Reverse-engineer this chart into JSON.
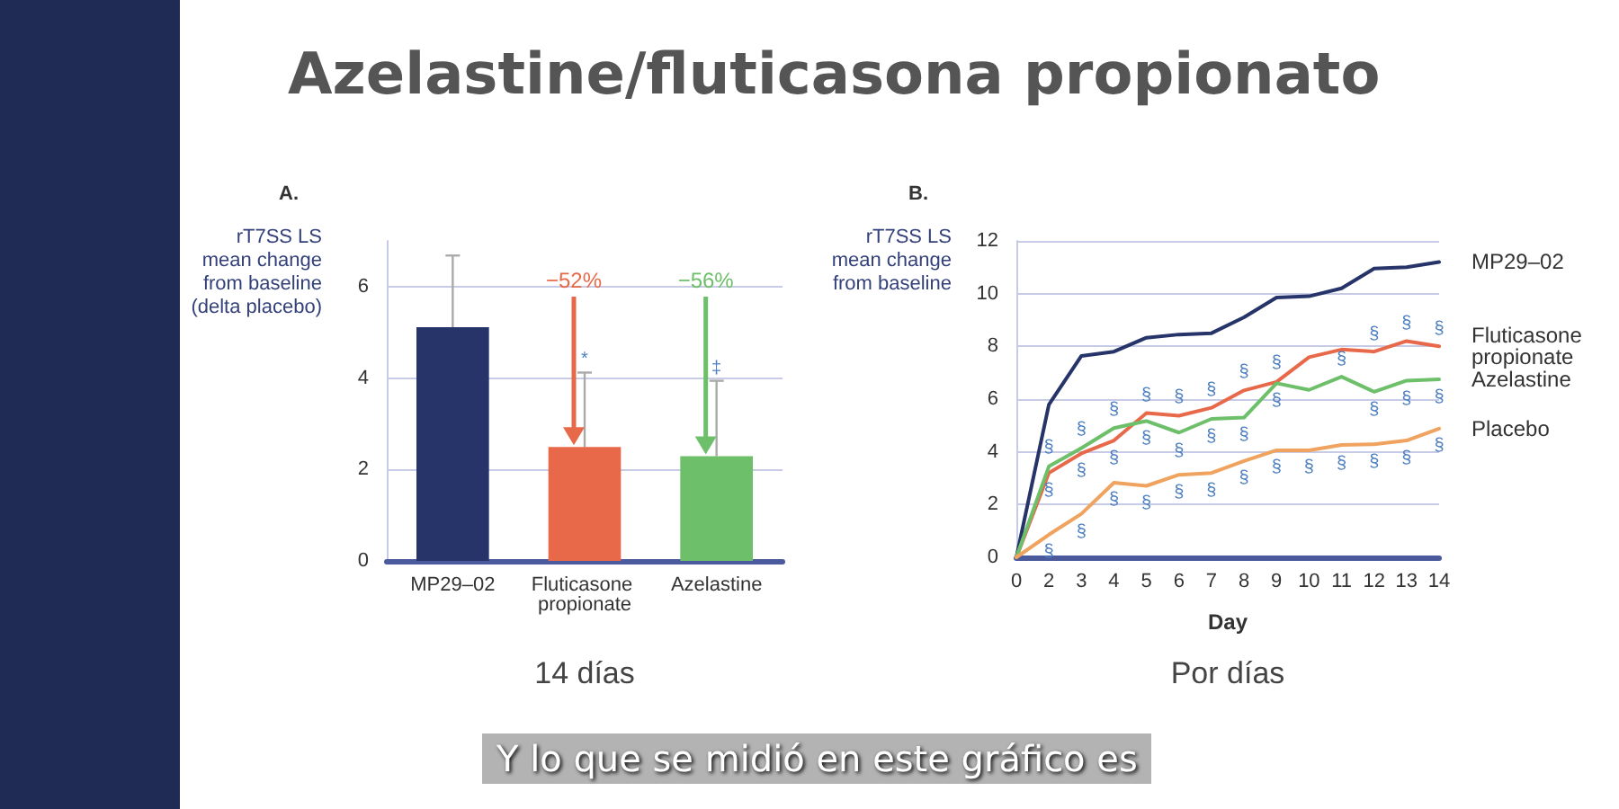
{
  "chart_data": [
    {
      "type": "bar",
      "title": "Azelastine/fluticasona propionato",
      "subtitle": "A.",
      "ylabel": "rT7SS LS mean change from baseline (delta placebo)",
      "xlabel": "14 días",
      "categories": [
        "MP29–02",
        "Fluticasone propionate",
        "Azelastine"
      ],
      "values": [
        5.11,
        2.49,
        2.29
      ],
      "colors": [
        "#26346a",
        "#e8694a",
        "#6dbf6a"
      ],
      "errors": [
        [
          5.11,
          6.68
        ],
        [
          2.49,
          4.12
        ],
        [
          2.29,
          3.94
        ]
      ],
      "ylim": [
        0,
        7
      ],
      "yticks": [
        0,
        2,
        4,
        6
      ],
      "grid": "y",
      "annotations": [
        "−52%",
        "−56%",
        {
          "text": "*",
          "x": "Fluticasone propionate",
          "y": 4.12
        },
        {
          "text": "‡",
          "x": "Azelastine",
          "y": 3.94
        }
      ]
    },
    {
      "type": "line",
      "title": "B.",
      "ylabel": "rT7SS LS mean change from baseline",
      "xlabel": "Day",
      "categories": [
        "0",
        "2",
        "3",
        "4",
        "5",
        "6",
        "7",
        "8",
        "9",
        "10",
        "11",
        "12",
        "13",
        "14"
      ],
      "series": [
        {
          "name": "MP29–02",
          "color": "#26346a",
          "values": [
            0,
            5.79,
            7.64,
            7.8,
            8.33,
            8.45,
            8.5,
            9.1,
            9.85,
            9.9,
            10.2,
            10.95,
            11.0,
            11.2
          ]
        },
        {
          "name": "Fluticasone propionate",
          "color": "#e8694a",
          "values": [
            0,
            3.2,
            3.94,
            4.43,
            5.47,
            5.37,
            5.67,
            6.33,
            6.65,
            7.59,
            7.88,
            7.8,
            8.2,
            8.0
          ]
        },
        {
          "name": "Azelastine",
          "color": "#6dbf6a",
          "values": [
            0,
            3.45,
            4.14,
            4.9,
            5.17,
            4.73,
            5.25,
            5.3,
            6.6,
            6.35,
            6.85,
            6.28,
            6.7,
            6.75
          ]
        },
        {
          "name": "Placebo",
          "color": "#f0a35e",
          "values": [
            0,
            0.86,
            1.65,
            2.83,
            2.71,
            3.13,
            3.2,
            3.65,
            4.06,
            4.06,
            4.26,
            4.29,
            4.43,
            4.88
          ]
        }
      ],
      "ylim": [
        0,
        12
      ],
      "yticks": [
        0,
        2,
        4,
        6,
        8,
        10,
        12
      ],
      "grid": "y",
      "marker": "none",
      "line_style": "solid",
      "annotations": [
        "Por días",
        "Y lo que se midió en este gráfico es",
        {
          "text": "§",
          "x": "2",
          "y": 3.45
        },
        {
          "text": "§",
          "x": "2",
          "y": 3.2
        },
        {
          "text": "§",
          "x": "2",
          "y": 0.86
        },
        {
          "text": "§",
          "x": "3",
          "y": 4.14
        },
        {
          "text": "§",
          "x": "3",
          "y": 3.94
        },
        {
          "text": "§",
          "x": "3",
          "y": 1.65
        },
        {
          "text": "§",
          "x": "4",
          "y": 4.9
        },
        {
          "text": "§",
          "x": "4",
          "y": 4.43
        },
        {
          "text": "§",
          "x": "4",
          "y": 2.83
        },
        {
          "text": "§",
          "x": "5",
          "y": 5.47
        },
        {
          "text": "§",
          "x": "5",
          "y": 5.17
        },
        {
          "text": "§",
          "x": "5",
          "y": 2.71
        },
        {
          "text": "§",
          "x": "6",
          "y": 5.37
        },
        {
          "text": "§",
          "x": "6",
          "y": 4.73
        },
        {
          "text": "§",
          "x": "6",
          "y": 3.13
        },
        {
          "text": "§",
          "x": "7",
          "y": 5.67
        },
        {
          "text": "§",
          "x": "7",
          "y": 5.25
        },
        {
          "text": "§",
          "x": "7",
          "y": 3.2
        },
        {
          "text": "§",
          "x": "8",
          "y": 6.33
        },
        {
          "text": "§",
          "x": "8",
          "y": 5.3
        },
        {
          "text": "§",
          "x": "8",
          "y": 3.65
        },
        {
          "text": "§",
          "x": "9",
          "y": 6.65
        },
        {
          "text": "§",
          "x": "9",
          "y": 6.6
        },
        {
          "text": "§",
          "x": "9",
          "y": 4.06
        },
        {
          "text": "§",
          "x": "10",
          "y": 4.06
        },
        {
          "text": "§",
          "x": "11",
          "y": 6.85
        },
        {
          "text": "§",
          "x": "11",
          "y": 4.26
        },
        {
          "text": "§",
          "x": "12",
          "y": 7.8
        },
        {
          "text": "§",
          "x": "12",
          "y": 6.28
        },
        {
          "text": "§",
          "x": "12",
          "y": 4.29
        },
        {
          "text": "§",
          "x": "13",
          "y": 8.2
        },
        {
          "text": "§",
          "x": "13",
          "y": 6.7
        },
        {
          "text": "§",
          "x": "13",
          "y": 4.43
        },
        {
          "text": "§",
          "x": "14",
          "y": 8.0
        },
        {
          "text": "§",
          "x": "14",
          "y": 6.75
        },
        {
          "text": "§",
          "x": "14",
          "y": 4.88
        }
      ]
    }
  ]
}
